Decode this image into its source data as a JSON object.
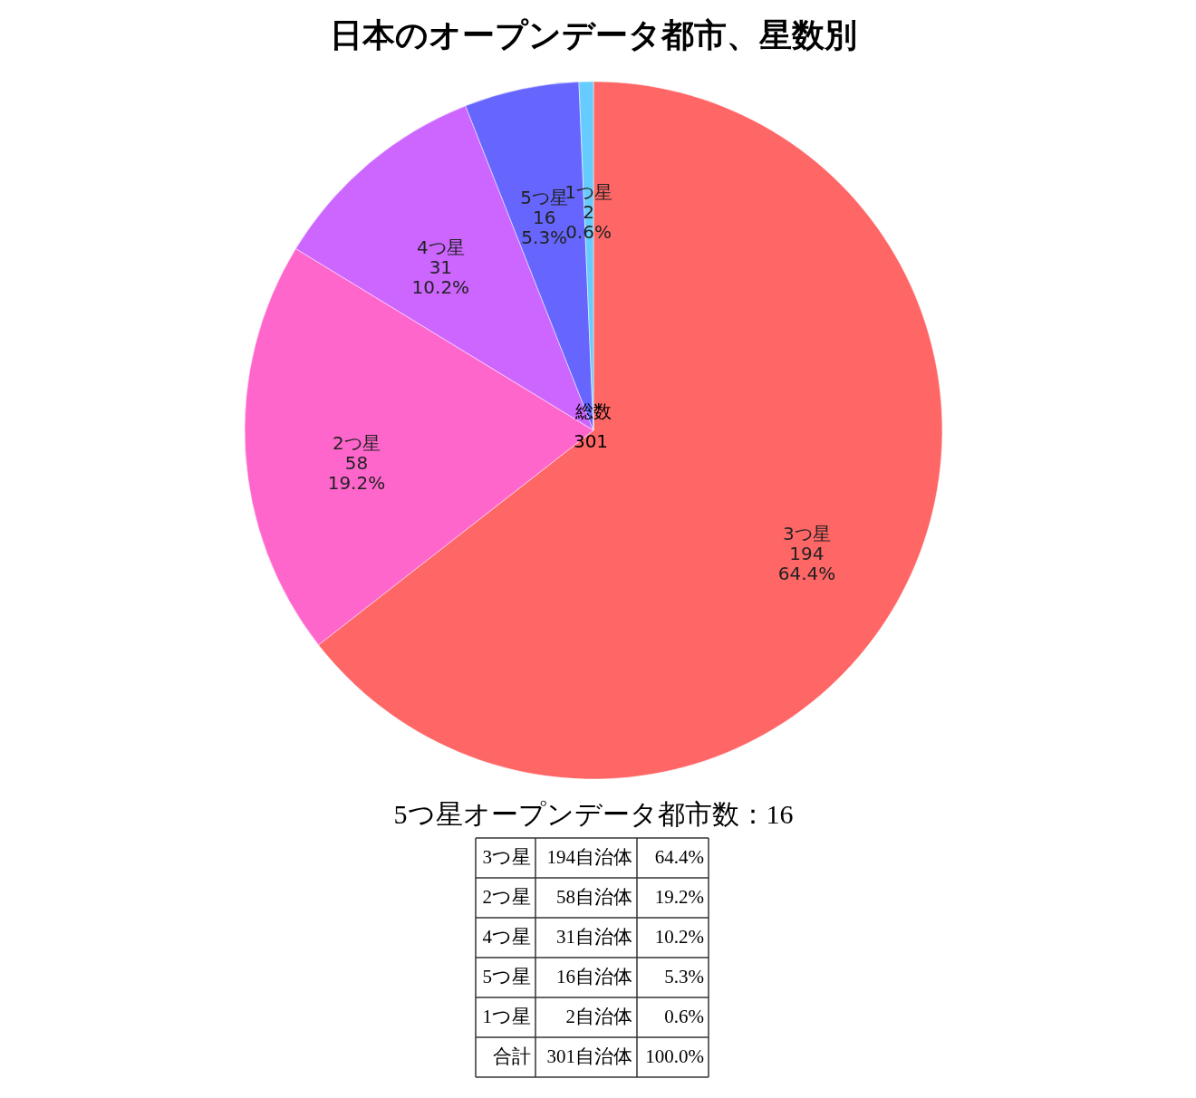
{
  "chart_data": {
    "type": "pie",
    "title": "日本のオープンデータ都市、星数別",
    "categories": [
      "3つ星",
      "2つ星",
      "4つ星",
      "5つ星",
      "1つ星"
    ],
    "values": [
      194,
      58,
      31,
      16,
      2
    ],
    "colors": [
      "#ff6666",
      "#ff66cc",
      "#cc66ff",
      "#6666ff",
      "#66ccff"
    ],
    "data_labels": true,
    "annotations": [
      "総数",
      "301",
      "5つ星オープンデータ都市数：16",
      "64.4%",
      "19.2%",
      "10.2%",
      "5.3%",
      "0.6%",
      "3つ星",
      "194自治体",
      "64.4%",
      "2つ星",
      "58自治体",
      "19.2%",
      "4つ星",
      "31自治体",
      "10.2%",
      "5つ星",
      "16自治体",
      "5.3%",
      "1つ星",
      "2自治体",
      "0.6%",
      "合計",
      "301自治体",
      "100.0%"
    ]
  }
}
